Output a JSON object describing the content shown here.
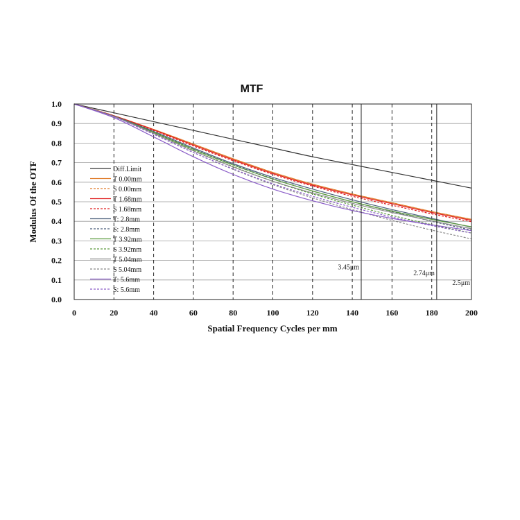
{
  "chart_data": {
    "type": "line",
    "title": "MTF",
    "xlabel": "Spatial Frequency Cycles per mm",
    "ylabel": "Modulus Of  the OTF",
    "xlim": [
      0,
      200
    ],
    "ylim": [
      0,
      1
    ],
    "xticks": [
      "0",
      "20",
      "40",
      "60",
      "80",
      "100",
      "120",
      "140",
      "160",
      "180",
      "200"
    ],
    "yticks": [
      "0.0",
      "0.1",
      "0.2",
      "0.3",
      "0.4",
      "0.5",
      "0.6",
      "0.7",
      "0.8",
      "0.9",
      "1.0"
    ],
    "x_gridlines_dashed": [
      20,
      40,
      60,
      80,
      100,
      120,
      140,
      160,
      180
    ],
    "y_gridlines": [
      0.1,
      0.2,
      0.3,
      0.4,
      0.5,
      0.6,
      0.7,
      0.8,
      0.9
    ],
    "legend_position": "left",
    "x": [
      0,
      20,
      40,
      60,
      80,
      100,
      120,
      140,
      160,
      180,
      200
    ],
    "series": [
      {
        "name": "Diff.Limit",
        "color": "#333333",
        "dash": "solid",
        "values": [
          1.0,
          0.955,
          0.91,
          0.865,
          0.82,
          0.775,
          0.73,
          0.69,
          0.65,
          0.61,
          0.57
        ]
      },
      {
        "name": "T 0.00mm",
        "color": "#e07b29",
        "dash": "solid",
        "values": [
          1.0,
          0.94,
          0.87,
          0.795,
          0.72,
          0.65,
          0.59,
          0.54,
          0.495,
          0.45,
          0.41
        ]
      },
      {
        "name": "S 0.00mm",
        "color": "#e07b29",
        "dash": "dashed",
        "values": [
          1.0,
          0.94,
          0.87,
          0.795,
          0.72,
          0.65,
          0.59,
          0.54,
          0.495,
          0.45,
          0.41
        ]
      },
      {
        "name": "T 1.68mm",
        "color": "#e02020",
        "dash": "solid",
        "values": [
          1.0,
          0.94,
          0.868,
          0.79,
          0.715,
          0.645,
          0.585,
          0.535,
          0.49,
          0.445,
          0.405
        ]
      },
      {
        "name": "S 1.68mm",
        "color": "#e02020",
        "dash": "dashed",
        "values": [
          1.0,
          0.94,
          0.865,
          0.785,
          0.71,
          0.64,
          0.58,
          0.528,
          0.482,
          0.438,
          0.398
        ]
      },
      {
        "name": "T: 2.8mm",
        "color": "#4a5e7a",
        "dash": "solid",
        "values": [
          1.0,
          0.938,
          0.86,
          0.775,
          0.695,
          0.625,
          0.565,
          0.51,
          0.46,
          0.415,
          0.37
        ]
      },
      {
        "name": "S: 2.8mm",
        "color": "#4a5e7a",
        "dash": "dashed",
        "values": [
          1.0,
          0.937,
          0.857,
          0.77,
          0.69,
          0.618,
          0.555,
          0.5,
          0.45,
          0.4,
          0.355
        ]
      },
      {
        "name": "T 3.92mm",
        "color": "#5a9a3c",
        "dash": "solid",
        "values": [
          1.0,
          0.937,
          0.855,
          0.768,
          0.688,
          0.616,
          0.555,
          0.5,
          0.452,
          0.41,
          0.372
        ]
      },
      {
        "name": "S 3.92mm",
        "color": "#5a9a3c",
        "dash": "dashed",
        "values": [
          1.0,
          0.936,
          0.852,
          0.762,
          0.68,
          0.605,
          0.54,
          0.483,
          0.43,
          0.383,
          0.34
        ]
      },
      {
        "name": "T 5.04mm",
        "color": "#888888",
        "dash": "solid",
        "values": [
          1.0,
          0.936,
          0.85,
          0.76,
          0.678,
          0.605,
          0.545,
          0.492,
          0.445,
          0.402,
          0.362
        ]
      },
      {
        "name": "S 5.04mm",
        "color": "#888888",
        "dash": "dashed",
        "values": [
          1.0,
          0.935,
          0.846,
          0.752,
          0.666,
          0.588,
          0.52,
          0.46,
          0.405,
          0.355,
          0.31
        ]
      },
      {
        "name": "T: 5.6mm",
        "color": "#8a5cc8",
        "dash": "solid",
        "values": [
          1.0,
          0.93,
          0.832,
          0.73,
          0.64,
          0.565,
          0.505,
          0.455,
          0.415,
          0.382,
          0.352
        ]
      },
      {
        "name": "S: 5.6mm",
        "color": "#8a5cc8",
        "dash": "dashed",
        "values": [
          1.0,
          0.935,
          0.845,
          0.752,
          0.668,
          0.592,
          0.528,
          0.472,
          0.422,
          0.378,
          0.34
        ]
      }
    ],
    "reference_lines": [
      {
        "x": 144.5,
        "label": "3.45μm"
      },
      {
        "x": 182.5,
        "label": "2.74μm"
      },
      {
        "x": 200,
        "label": "2.5μm"
      }
    ]
  }
}
